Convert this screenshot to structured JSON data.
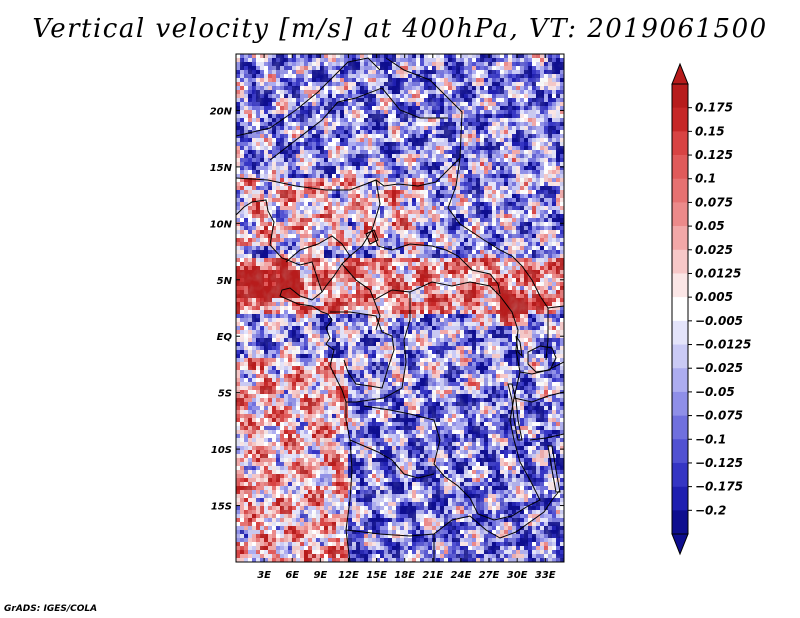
{
  "title": "Vertical velocity [m/s] at 400hPa, VT: 2019061500",
  "credit": "GrADS: IGES/COLA",
  "chart_data": {
    "type": "heatmap",
    "title": "Vertical velocity [m/s] at 400hPa, VT: 2019061500",
    "variable": "Vertical velocity",
    "units": "m/s",
    "level": "400hPa",
    "valid_time": "2019061500",
    "x_range": [
      0,
      35
    ],
    "y_range": [
      -20,
      25
    ],
    "x_ticks": [
      "3E",
      "6E",
      "9E",
      "12E",
      "15E",
      "18E",
      "21E",
      "24E",
      "27E",
      "30E",
      "33E"
    ],
    "y_ticks": [
      "20N",
      "15N",
      "10N",
      "5N",
      "EQ",
      "5S",
      "10S",
      "15S"
    ],
    "colorbar_labels": [
      "0.175",
      "0.15",
      "0.125",
      "0.1",
      "0.075",
      "0.05",
      "0.025",
      "0.0125",
      "0.005",
      "-0.005",
      "-0.0125",
      "-0.025",
      "-0.05",
      "-0.075",
      "-0.1",
      "-0.125",
      "-0.175",
      "-0.2"
    ],
    "colorbar_colors": [
      "#b71c1c",
      "#c62828",
      "#d84343",
      "#e05a5a",
      "#e67272",
      "#ec8a8a",
      "#f2a8a8",
      "#f7c8c8",
      "#fbe6e6",
      "#ffffff",
      "#e4e4fa",
      "#cacaf5",
      "#adadf0",
      "#8f8fe8",
      "#7070de",
      "#5151d2",
      "#3535c4",
      "#1f1fb0",
      "#0e0e8f"
    ],
    "colorbar_extend": "both",
    "features": [
      "coastlines",
      "country borders",
      "lakes"
    ]
  }
}
